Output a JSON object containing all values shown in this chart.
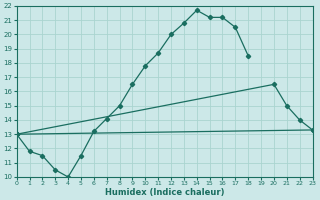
{
  "xlabel": "Humidex (Indice chaleur)",
  "xlim": [
    0,
    23
  ],
  "ylim": [
    10,
    22
  ],
  "xticks": [
    0,
    1,
    2,
    3,
    4,
    5,
    6,
    7,
    8,
    9,
    10,
    11,
    12,
    13,
    14,
    15,
    16,
    17,
    18,
    19,
    20,
    21,
    22,
    23
  ],
  "yticks": [
    10,
    11,
    12,
    13,
    14,
    15,
    16,
    17,
    18,
    19,
    20,
    21,
    22
  ],
  "background_color": "#cce8e8",
  "line_color": "#1a6e60",
  "grid_color": "#aad4d0",
  "line1_x": [
    0,
    1,
    2,
    3,
    4,
    5,
    6,
    7,
    8,
    9,
    10,
    11,
    12,
    13,
    14,
    15,
    16,
    17,
    18
  ],
  "line1_y": [
    13.0,
    11.8,
    11.5,
    10.5,
    10.0,
    11.5,
    13.2,
    14.1,
    15.0,
    16.5,
    17.8,
    18.7,
    20.0,
    20.8,
    21.7,
    21.2,
    21.2,
    20.5,
    18.5
  ],
  "line2_x": [
    0,
    20,
    21,
    22,
    23
  ],
  "line2_y": [
    13.0,
    16.5,
    15.0,
    14.0,
    13.3
  ],
  "line3_x": [
    0,
    23
  ],
  "line3_y": [
    13.0,
    13.3
  ]
}
